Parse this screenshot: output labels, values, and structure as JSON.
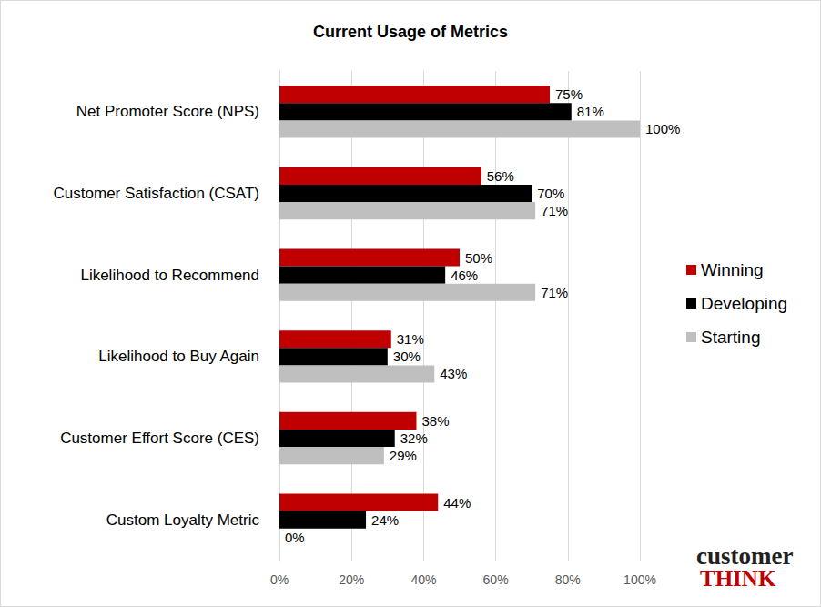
{
  "chart_data": {
    "type": "bar",
    "title": "Current Usage of Metrics",
    "orientation": "horizontal",
    "categories": [
      "Net Promoter Score (NPS)",
      "Customer Satisfaction (CSAT)",
      "Likelihood to Recommend",
      "Likelihood to Buy Again",
      "Customer Effort Score (CES)",
      "Custom Loyalty Metric"
    ],
    "series": [
      {
        "name": "Winning",
        "color": "#c00000",
        "values": [
          75,
          56,
          50,
          31,
          38,
          44
        ],
        "value_labels": [
          "75%",
          "56%",
          "50%",
          "31%",
          "38%",
          "44%"
        ]
      },
      {
        "name": "Developing",
        "color": "#000000",
        "values": [
          81,
          70,
          46,
          30,
          32,
          24
        ],
        "value_labels": [
          "81%",
          "70%",
          "46%",
          "30%",
          "32%",
          "24%"
        ]
      },
      {
        "name": "Starting",
        "color": "#bfbfbf",
        "values": [
          100,
          71,
          71,
          43,
          29,
          0
        ],
        "value_labels": [
          "100%",
          "71%",
          "71%",
          "43%",
          "29%",
          "0%"
        ]
      }
    ],
    "xlim": [
      0,
      100
    ],
    "xticks": [
      {
        "value": 0,
        "label": "0%"
      },
      {
        "value": 20,
        "label": "20%"
      },
      {
        "value": 40,
        "label": "40%"
      },
      {
        "value": 60,
        "label": "60%"
      },
      {
        "value": 80,
        "label": "80%"
      },
      {
        "value": 100,
        "label": "100%"
      }
    ],
    "grid": true,
    "legend": "right",
    "data_labels": true,
    "annotations": [
      "customer",
      "THINK"
    ]
  }
}
